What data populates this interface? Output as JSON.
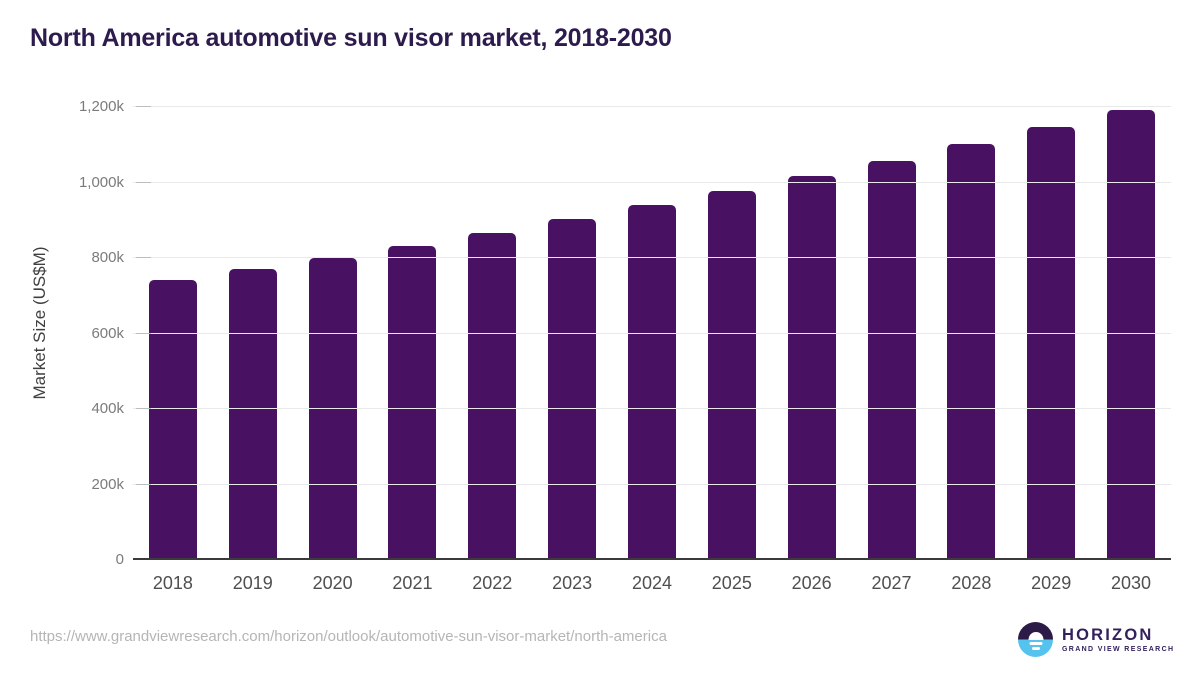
{
  "header": {
    "title": "North America automotive sun visor market, 2018-2030"
  },
  "chart_data": {
    "type": "bar",
    "title": "North America automotive sun visor market, 2018-2030",
    "categories": [
      "2018",
      "2019",
      "2020",
      "2021",
      "2022",
      "2023",
      "2024",
      "2025",
      "2026",
      "2027",
      "2028",
      "2029",
      "2030"
    ],
    "values": [
      741,
      771,
      801,
      833,
      866,
      903,
      940,
      978,
      1017,
      1058,
      1102,
      1147,
      1193
    ],
    "xlabel": "",
    "ylabel": "Market Size (US$M)",
    "ylim": [
      0,
      1200
    ],
    "ytick_values": [
      0,
      200,
      400,
      600,
      800,
      1000,
      1200
    ],
    "ytick_labels": [
      "0",
      "200k",
      "400k",
      "600k",
      "800k",
      "1,000k",
      "1,200k"
    ],
    "grid": "horizontal",
    "legend": "none",
    "bar_color": "#491161"
  },
  "footer": {
    "source_url": "https://www.grandviewresearch.com/horizon/outlook/automotive-sun-visor-market/north-america"
  },
  "logo": {
    "icon": "horizon-sun-icon",
    "brand": "HORIZON",
    "tagline": "GRAND VIEW RESEARCH",
    "colors": {
      "dark_half": "#2c1a47",
      "light_half": "#56c3ee",
      "text": "#33205c"
    }
  }
}
